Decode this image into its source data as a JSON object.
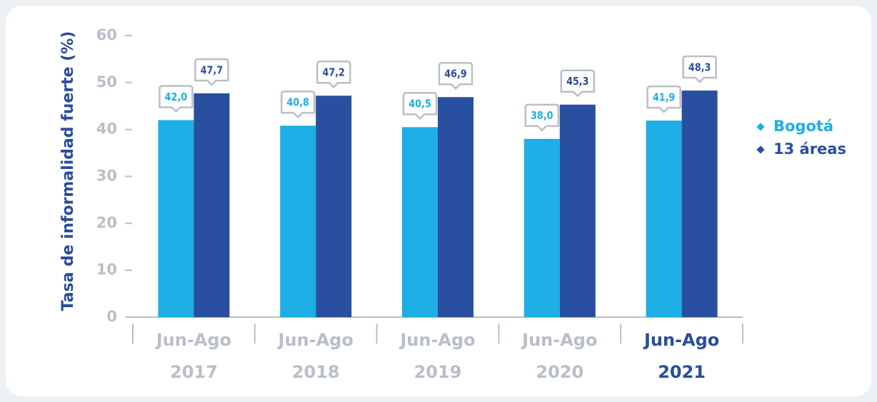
{
  "chart_data": {
    "type": "bar",
    "y_label": "Tasa de informalidad fuerte (%)",
    "categories": [
      [
        "Jun-Ago",
        "2017"
      ],
      [
        "Jun-Ago",
        "2018"
      ],
      [
        "Jun-Ago",
        "2019"
      ],
      [
        "Jun-Ago",
        "2020"
      ],
      [
        "Jun-Ago",
        "2021"
      ]
    ],
    "category_colors": [
      "#b9bfc8",
      "#b9bfc8",
      "#b9bfc8",
      "#b9bfc8",
      "#2a4d9c"
    ],
    "series": [
      {
        "name": "Bogotá",
        "color": "#1caee4",
        "values": [
          42.0,
          40.8,
          40.5,
          38.0,
          41.9
        ],
        "value_labels": [
          "42,0",
          "40,8",
          "40,5",
          "38,0",
          "41,9"
        ]
      },
      {
        "name": "13 áreas",
        "color": "#284fa0",
        "values": [
          47.7,
          47.2,
          46.9,
          45.3,
          48.3
        ],
        "value_labels": [
          "47,7",
          "47,2",
          "46,9",
          "45,3",
          "48,3"
        ]
      }
    ],
    "ylim": [
      0,
      60
    ],
    "yticks": [
      0,
      10,
      20,
      30,
      40,
      50,
      60
    ],
    "legend": "right"
  }
}
